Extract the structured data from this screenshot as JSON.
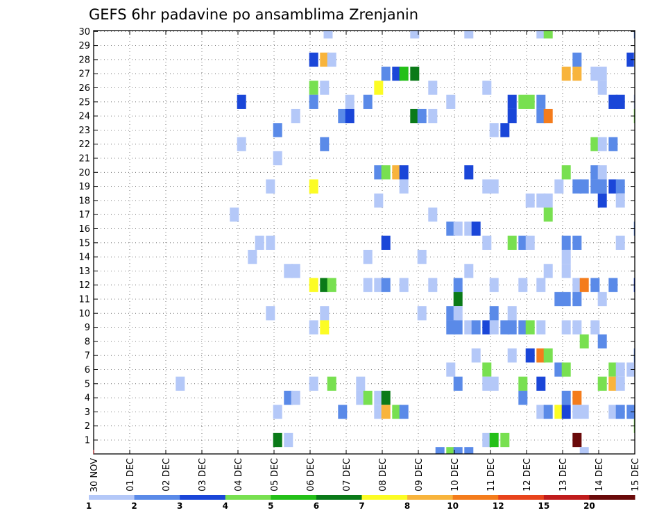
{
  "chart_data": {
    "type": "heatmap",
    "title": "GEFS 6hr padavine po ansamblima Zrenjanin",
    "xlabel": "",
    "ylabel": "",
    "x_tick_labels": [
      "30 NOV",
      "01 DEC",
      "02 DEC",
      "03 DEC",
      "04 DEC",
      "05 DEC",
      "06 DEC",
      "07 DEC",
      "08 DEC",
      "09 DEC",
      "10 DEC",
      "11 DEC",
      "12 DEC",
      "13 DEC",
      "14 DEC",
      "15 DEC"
    ],
    "y_tick_labels": [
      "1",
      "2",
      "3",
      "4",
      "5",
      "6",
      "7",
      "8",
      "9",
      "10",
      "11",
      "12",
      "13",
      "14",
      "15",
      "16",
      "17",
      "18",
      "19",
      "20",
      "21",
      "22",
      "23",
      "24",
      "25",
      "26",
      "27",
      "28",
      "29",
      "30"
    ],
    "ylim": [
      1,
      30
    ],
    "grid": true,
    "colorbar": {
      "labels": [
        "1",
        "2",
        "3",
        "4",
        "5",
        "6",
        "7",
        "8",
        "10",
        "12",
        "15",
        "20"
      ],
      "colors": [
        "#b4c8f8",
        "#5a8ae8",
        "#1a46d8",
        "#78e050",
        "#24c018",
        "#0a7a18",
        "#fcfc24",
        "#f8b43c",
        "#f47c1c",
        "#e8441c",
        "#c01c1c",
        "#6a0a0a"
      ]
    },
    "x_unit": "6-hour step",
    "cells": [
      [
        6.5,
        30,
        1
      ],
      [
        8.9,
        30,
        1
      ],
      [
        10.4,
        30,
        1
      ],
      [
        12.4,
        30,
        1
      ],
      [
        12.6,
        30,
        4
      ],
      [
        15.1,
        30,
        2
      ],
      [
        6.1,
        28,
        3
      ],
      [
        6.4,
        28,
        8
      ],
      [
        6.6,
        28,
        1
      ],
      [
        13.4,
        28,
        2
      ],
      [
        14.9,
        28,
        3
      ],
      [
        15.1,
        28,
        1
      ],
      [
        8.1,
        27,
        2
      ],
      [
        8.4,
        27,
        3
      ],
      [
        8.6,
        27,
        5
      ],
      [
        8.9,
        27,
        6
      ],
      [
        13.1,
        27,
        8
      ],
      [
        13.4,
        27,
        8
      ],
      [
        13.9,
        27,
        1
      ],
      [
        14.1,
        27,
        1
      ],
      [
        6.1,
        26,
        4
      ],
      [
        6.4,
        26,
        1
      ],
      [
        7.9,
        26,
        7
      ],
      [
        9.4,
        26,
        1
      ],
      [
        10.9,
        26,
        1
      ],
      [
        14.1,
        26,
        1
      ],
      [
        4.1,
        25,
        3
      ],
      [
        6.1,
        25,
        2
      ],
      [
        7.1,
        25,
        1
      ],
      [
        7.6,
        25,
        2
      ],
      [
        9.9,
        25,
        1
      ],
      [
        11.6,
        25,
        3
      ],
      [
        11.9,
        25,
        4
      ],
      [
        12.1,
        25,
        4
      ],
      [
        12.4,
        25,
        2
      ],
      [
        14.4,
        25,
        3
      ],
      [
        14.6,
        25,
        3
      ],
      [
        15.1,
        25,
        1
      ],
      [
        5.6,
        24,
        1
      ],
      [
        6.9,
        24,
        2
      ],
      [
        7.1,
        24,
        3
      ],
      [
        8.9,
        24,
        6
      ],
      [
        9.1,
        24,
        2
      ],
      [
        9.4,
        24,
        1
      ],
      [
        11.6,
        24,
        3
      ],
      [
        12.4,
        24,
        2
      ],
      [
        12.6,
        24,
        9
      ],
      [
        15.1,
        24,
        4
      ],
      [
        5.1,
        23,
        2
      ],
      [
        11.1,
        23,
        1
      ],
      [
        11.4,
        23,
        3
      ],
      [
        4.1,
        22,
        1
      ],
      [
        6.4,
        22,
        2
      ],
      [
        13.9,
        22,
        4
      ],
      [
        14.1,
        22,
        1
      ],
      [
        14.4,
        22,
        2
      ],
      [
        5.1,
        21,
        1
      ],
      [
        7.9,
        20,
        2
      ],
      [
        8.1,
        20,
        4
      ],
      [
        8.4,
        20,
        8
      ],
      [
        8.6,
        20,
        3
      ],
      [
        10.4,
        20,
        3
      ],
      [
        13.1,
        20,
        4
      ],
      [
        13.9,
        20,
        2
      ],
      [
        14.1,
        20,
        1
      ],
      [
        4.9,
        19,
        1
      ],
      [
        6.1,
        19,
        7
      ],
      [
        8.6,
        19,
        1
      ],
      [
        10.9,
        19,
        1
      ],
      [
        11.1,
        19,
        1
      ],
      [
        12.9,
        19,
        1
      ],
      [
        13.4,
        19,
        2
      ],
      [
        13.6,
        19,
        2
      ],
      [
        13.9,
        19,
        2
      ],
      [
        14.1,
        19,
        2
      ],
      [
        14.4,
        19,
        3
      ],
      [
        14.6,
        19,
        2
      ],
      [
        7.9,
        18,
        1
      ],
      [
        12.1,
        18,
        1
      ],
      [
        12.4,
        18,
        1
      ],
      [
        12.6,
        18,
        1
      ],
      [
        14.1,
        18,
        3
      ],
      [
        14.6,
        18,
        1
      ],
      [
        3.9,
        17,
        1
      ],
      [
        9.4,
        17,
        1
      ],
      [
        12.6,
        17,
        4
      ],
      [
        9.9,
        16,
        2
      ],
      [
        10.1,
        16,
        1
      ],
      [
        10.4,
        16,
        1
      ],
      [
        10.6,
        16,
        3
      ],
      [
        15.1,
        16,
        2
      ],
      [
        4.6,
        15,
        1
      ],
      [
        4.9,
        15,
        1
      ],
      [
        8.1,
        15,
        3
      ],
      [
        10.9,
        15,
        1
      ],
      [
        11.6,
        15,
        4
      ],
      [
        11.9,
        15,
        2
      ],
      [
        12.1,
        15,
        1
      ],
      [
        13.1,
        15,
        2
      ],
      [
        13.4,
        15,
        2
      ],
      [
        14.6,
        15,
        1
      ],
      [
        4.4,
        14,
        1
      ],
      [
        7.6,
        14,
        1
      ],
      [
        9.1,
        14,
        1
      ],
      [
        13.1,
        14,
        1
      ],
      [
        5.4,
        13,
        1
      ],
      [
        5.6,
        13,
        1
      ],
      [
        10.4,
        13,
        1
      ],
      [
        12.6,
        13,
        1
      ],
      [
        13.1,
        13,
        1
      ],
      [
        6.1,
        12,
        7
      ],
      [
        6.4,
        12,
        6
      ],
      [
        6.6,
        12,
        4
      ],
      [
        7.6,
        12,
        1
      ],
      [
        7.9,
        12,
        1
      ],
      [
        8.1,
        12,
        2
      ],
      [
        8.6,
        12,
        1
      ],
      [
        9.4,
        12,
        1
      ],
      [
        10.1,
        12,
        2
      ],
      [
        11.1,
        12,
        1
      ],
      [
        11.9,
        12,
        1
      ],
      [
        12.4,
        12,
        1
      ],
      [
        13.4,
        12,
        1
      ],
      [
        13.6,
        12,
        9
      ],
      [
        13.9,
        12,
        2
      ],
      [
        14.4,
        12,
        2
      ],
      [
        15.1,
        12,
        3
      ],
      [
        10.1,
        11,
        6
      ],
      [
        12.9,
        11,
        2
      ],
      [
        13.1,
        11,
        2
      ],
      [
        13.4,
        11,
        2
      ],
      [
        14.1,
        11,
        1
      ],
      [
        4.9,
        10,
        1
      ],
      [
        6.4,
        10,
        1
      ],
      [
        9.1,
        10,
        1
      ],
      [
        9.9,
        10,
        2
      ],
      [
        10.1,
        10,
        1
      ],
      [
        11.1,
        10,
        2
      ],
      [
        11.6,
        10,
        1
      ],
      [
        6.1,
        9,
        1
      ],
      [
        6.4,
        9,
        7
      ],
      [
        9.9,
        9,
        2
      ],
      [
        10.1,
        9,
        2
      ],
      [
        10.4,
        9,
        1
      ],
      [
        10.6,
        9,
        2
      ],
      [
        10.9,
        9,
        3
      ],
      [
        11.1,
        9,
        1
      ],
      [
        11.4,
        9,
        2
      ],
      [
        11.6,
        9,
        2
      ],
      [
        11.9,
        9,
        2
      ],
      [
        12.1,
        9,
        4
      ],
      [
        12.4,
        9,
        1
      ],
      [
        13.1,
        9,
        1
      ],
      [
        13.4,
        9,
        1
      ],
      [
        13.9,
        9,
        1
      ],
      [
        13.6,
        8,
        4
      ],
      [
        14.1,
        8,
        2
      ],
      [
        10.6,
        7,
        1
      ],
      [
        11.6,
        7,
        1
      ],
      [
        12.1,
        7,
        3
      ],
      [
        12.4,
        7,
        9
      ],
      [
        12.6,
        7,
        4
      ],
      [
        15.1,
        7,
        2
      ],
      [
        9.9,
        6,
        1
      ],
      [
        10.9,
        6,
        4
      ],
      [
        12.9,
        6,
        2
      ],
      [
        13.1,
        6,
        4
      ],
      [
        14.4,
        6,
        4
      ],
      [
        14.6,
        6,
        1
      ],
      [
        14.9,
        6,
        1
      ],
      [
        2.4,
        5,
        1
      ],
      [
        6.1,
        5,
        1
      ],
      [
        6.6,
        5,
        4
      ],
      [
        7.4,
        5,
        1
      ],
      [
        10.1,
        5,
        2
      ],
      [
        10.9,
        5,
        1
      ],
      [
        11.1,
        5,
        1
      ],
      [
        11.9,
        5,
        4
      ],
      [
        12.4,
        5,
        3
      ],
      [
        14.1,
        5,
        4
      ],
      [
        14.4,
        5,
        8
      ],
      [
        14.6,
        5,
        1
      ],
      [
        5.4,
        4,
        2
      ],
      [
        5.6,
        4,
        1
      ],
      [
        7.4,
        4,
        1
      ],
      [
        7.6,
        4,
        4
      ],
      [
        7.9,
        4,
        1
      ],
      [
        8.1,
        4,
        6
      ],
      [
        11.9,
        4,
        2
      ],
      [
        13.1,
        4,
        2
      ],
      [
        13.4,
        4,
        9
      ],
      [
        5.1,
        3,
        1
      ],
      [
        6.9,
        3,
        2
      ],
      [
        7.9,
        3,
        1
      ],
      [
        8.1,
        3,
        8
      ],
      [
        8.4,
        3,
        4
      ],
      [
        8.6,
        3,
        2
      ],
      [
        12.4,
        3,
        1
      ],
      [
        12.6,
        3,
        2
      ],
      [
        12.9,
        3,
        7
      ],
      [
        13.1,
        3,
        3
      ],
      [
        13.4,
        3,
        1
      ],
      [
        13.6,
        3,
        1
      ],
      [
        14.4,
        3,
        1
      ],
      [
        14.6,
        3,
        2
      ],
      [
        14.9,
        3,
        2
      ],
      [
        15.1,
        2,
        4
      ],
      [
        5.1,
        1,
        6
      ],
      [
        5.4,
        1,
        1
      ],
      [
        10.9,
        1,
        1
      ],
      [
        11.1,
        1,
        5
      ],
      [
        11.4,
        1,
        4
      ],
      [
        13.4,
        1,
        12
      ],
      [
        9.6,
        0,
        2
      ],
      [
        9.9,
        0,
        4
      ],
      [
        10.1,
        0,
        2
      ],
      [
        10.4,
        0,
        2
      ],
      [
        13.6,
        0,
        1
      ]
    ]
  }
}
